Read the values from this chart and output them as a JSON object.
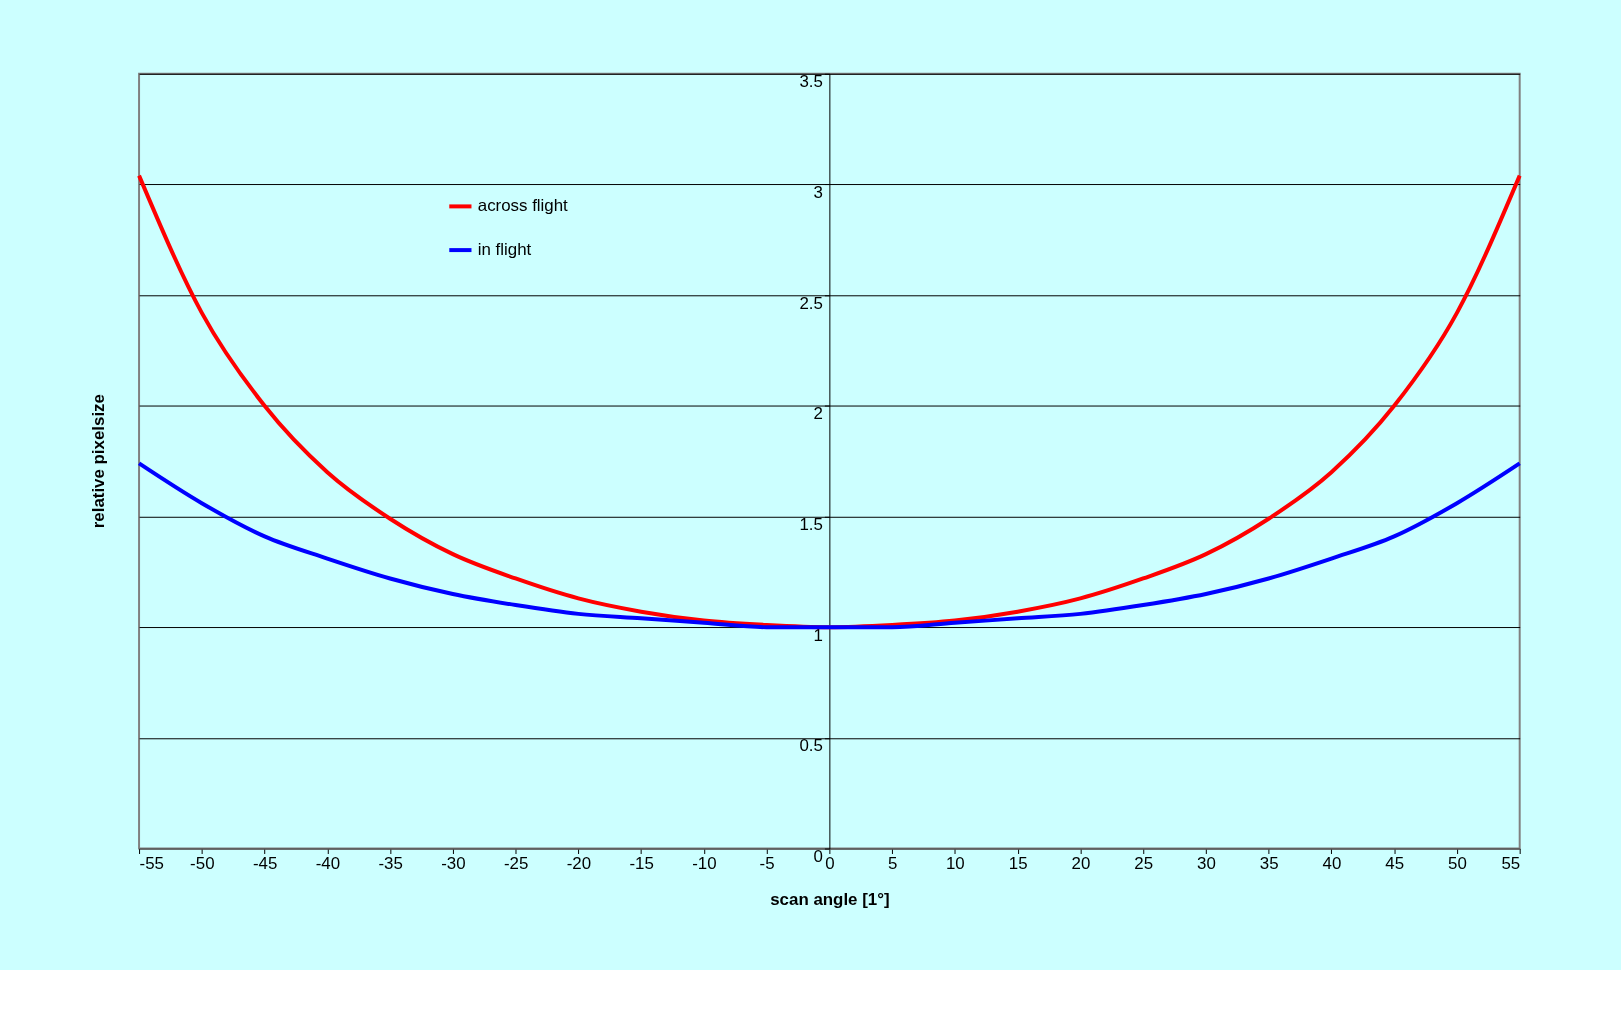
{
  "chart_data": {
    "type": "line",
    "xlabel": "scan angle [1°]",
    "ylabel": "relative pixelsize",
    "x": [
      -55,
      -50,
      -45,
      -40,
      -35,
      -30,
      -25,
      -20,
      -15,
      -10,
      -5,
      0,
      5,
      10,
      15,
      20,
      25,
      30,
      35,
      40,
      45,
      50,
      55
    ],
    "series": [
      {
        "name": "across flight",
        "color": "#ff0000",
        "values": [
          3.04,
          2.42,
          2.0,
          1.7,
          1.49,
          1.33,
          1.22,
          1.13,
          1.07,
          1.03,
          1.01,
          1.0,
          1.01,
          1.03,
          1.07,
          1.13,
          1.22,
          1.33,
          1.49,
          1.7,
          2.0,
          2.42,
          3.04
        ]
      },
      {
        "name": "in flight",
        "color": "#0000ff",
        "values": [
          1.74,
          1.56,
          1.41,
          1.31,
          1.22,
          1.15,
          1.1,
          1.06,
          1.04,
          1.02,
          1.0,
          1.0,
          1.0,
          1.02,
          1.04,
          1.06,
          1.1,
          1.15,
          1.22,
          1.31,
          1.41,
          1.56,
          1.74
        ]
      }
    ],
    "xlim": [
      -55,
      55
    ],
    "xticks": [
      -55,
      -50,
      -45,
      -40,
      -35,
      -30,
      -25,
      -20,
      -15,
      -10,
      -5,
      0,
      5,
      10,
      15,
      20,
      25,
      30,
      35,
      40,
      45,
      50,
      55
    ],
    "ylim": [
      0,
      3.5
    ],
    "yticks": [
      0,
      0.5,
      1,
      1.5,
      2,
      2.5,
      3,
      3.5
    ],
    "grid": "y",
    "legend": "top left",
    "marker": "none",
    "line_style": "solid"
  }
}
